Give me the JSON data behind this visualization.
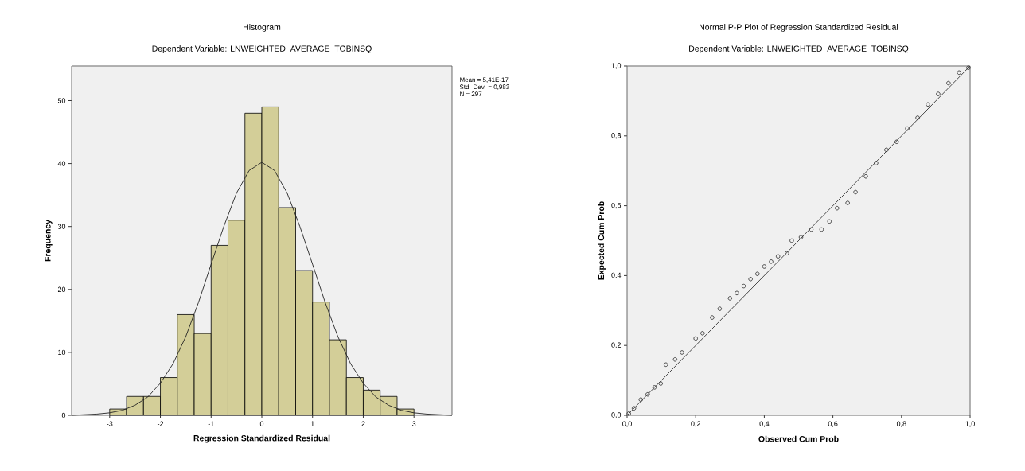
{
  "chart_data": [
    {
      "type": "histogram",
      "title": "Histogram",
      "subtitle": "Dependent Variable: LNWEIGHTED_AVERAGE_TOBINSQ",
      "xlabel": "Regression Standardized Residual",
      "ylabel": "Frequency",
      "bins": [
        -3,
        -2.667,
        -2.333,
        -2,
        -1.667,
        -1.333,
        -1,
        -0.667,
        -0.333,
        0,
        0.333,
        0.667,
        1,
        1.333,
        1.667,
        2,
        2.333,
        2.667,
        3
      ],
      "values": [
        1,
        3,
        3,
        6,
        16,
        13,
        27,
        31,
        48,
        49,
        33,
        23,
        18,
        12,
        6,
        4,
        3,
        1
      ],
      "color": "#d3ce98",
      "series": [
        {
          "type": "line",
          "color": "#222222",
          "x": [
            -3.75,
            -3.5,
            -3.25,
            -3,
            -2.75,
            -2.5,
            -2.25,
            -2,
            -1.75,
            -1.5,
            -1.25,
            -1,
            -0.75,
            -0.5,
            -0.25,
            0,
            0.25,
            0.5,
            0.75,
            1,
            1.25,
            1.5,
            1.75,
            2,
            2.25,
            2.5,
            2.75,
            3,
            3.25,
            3.5,
            3.75
          ],
          "values": [
            0,
            0.1,
            0.2,
            0.4,
            0.8,
            1.6,
            2.9,
            5.1,
            8.2,
            12.5,
            17.9,
            24,
            30,
            35.3,
            38.9,
            40.2,
            38.9,
            35.3,
            30,
            24,
            17.9,
            12.5,
            8.2,
            5.1,
            2.9,
            1.6,
            0.8,
            0.4,
            0.2,
            0.1,
            0
          ]
        }
      ],
      "xlim": [
        -3.75,
        3.75
      ],
      "xticks": [
        -3,
        -2,
        -1,
        0,
        1,
        2,
        3
      ],
      "ylim": [
        0,
        55.5
      ],
      "yticks": [
        0,
        10,
        20,
        30,
        40,
        50
      ],
      "annotations": [
        "Mean = 5,41E-17",
        "Std. Dev. = 0,983",
        "N = 297"
      ]
    },
    {
      "type": "scatter",
      "title": "Normal P-P Plot of Regression Standardized Residual",
      "subtitle": "Dependent Variable: LNWEIGHTED_AVERAGE_TOBINSQ",
      "xlabel": "Observed Cum Prob",
      "ylabel": "Expected Cum Prob",
      "series": [
        {
          "type": "scatter",
          "marker": "circle",
          "color": "#333333",
          "x": [
            0.005,
            0.02,
            0.04,
            0.06,
            0.08,
            0.098,
            0.113,
            0.14,
            0.16,
            0.2,
            0.22,
            0.248,
            0.27,
            0.3,
            0.32,
            0.34,
            0.36,
            0.38,
            0.4,
            0.42,
            0.44,
            0.466,
            0.48,
            0.507,
            0.537,
            0.567,
            0.59,
            0.612,
            0.643,
            0.666,
            0.696,
            0.726,
            0.756,
            0.786,
            0.817,
            0.847,
            0.877,
            0.907,
            0.937,
            0.968,
            0.995
          ],
          "values": [
            0.005,
            0.02,
            0.045,
            0.06,
            0.08,
            0.091,
            0.145,
            0.16,
            0.18,
            0.22,
            0.235,
            0.28,
            0.305,
            0.335,
            0.35,
            0.37,
            0.39,
            0.405,
            0.426,
            0.44,
            0.455,
            0.464,
            0.5,
            0.51,
            0.532,
            0.532,
            0.555,
            0.593,
            0.608,
            0.639,
            0.684,
            0.722,
            0.76,
            0.783,
            0.821,
            0.852,
            0.89,
            0.92,
            0.951,
            0.981,
            0.995
          ]
        },
        {
          "type": "line",
          "marker": "none",
          "color": "#333333",
          "x": [
            0,
            1
          ],
          "values": [
            0,
            1
          ]
        }
      ],
      "xlim": [
        0,
        1
      ],
      "xticks": [
        {
          "value": 0,
          "label": "0,0"
        },
        {
          "value": 0.2,
          "label": "0,2"
        },
        {
          "value": 0.4,
          "label": "0,4"
        },
        {
          "value": 0.6,
          "label": "0,6"
        },
        {
          "value": 0.8,
          "label": "0,8"
        },
        {
          "value": 1,
          "label": "1,0"
        }
      ],
      "ylim": [
        0,
        1
      ],
      "yticks": [
        {
          "value": 0,
          "label": "0,0"
        },
        {
          "value": 0.2,
          "label": "0,2"
        },
        {
          "value": 0.4,
          "label": "0,4"
        },
        {
          "value": 0.6,
          "label": "0,6"
        },
        {
          "value": 0.8,
          "label": "0,8"
        },
        {
          "value": 1,
          "label": "1,0"
        }
      ]
    }
  ]
}
